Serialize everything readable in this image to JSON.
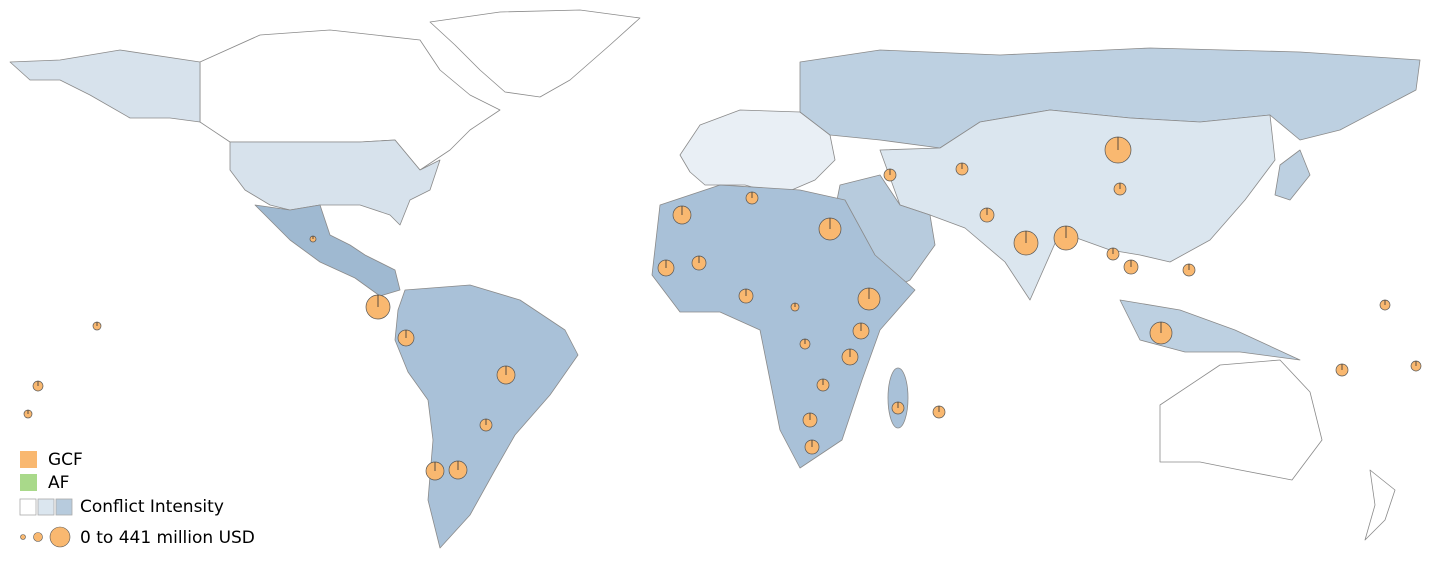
{
  "legend": {
    "gcf": {
      "label": "GCF",
      "color": "#f9b870"
    },
    "af": {
      "label": "AF",
      "color": "#a9d98a"
    },
    "conflict": {
      "label": "Conflict Intensity",
      "colors": [
        "#ffffff",
        "#dbe6ef",
        "#b7cbdd"
      ]
    },
    "size": {
      "label": "0 to 441 million USD"
    }
  },
  "circles": [
    441,
    376,
    376,
    376,
    316,
    316,
    316,
    211,
    211,
    211,
    211,
    167,
    167,
    167,
    167,
    128,
    128,
    94,
    128,
    128,
    128,
    128,
    94,
    94,
    94,
    94,
    94,
    65,
    65,
    65,
    42,
    42,
    24,
    94,
    94,
    94,
    94,
    94,
    65,
    42
  ]
}
